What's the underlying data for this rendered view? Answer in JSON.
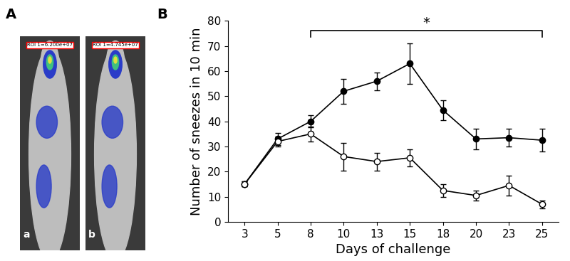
{
  "panel_labels": [
    "A",
    "B"
  ],
  "images": [
    {
      "label": "a",
      "roi": "ROI 1=6.200e+07"
    },
    {
      "label": "b",
      "roi": "ROI 1=4.745e+07"
    }
  ],
  "chart_data": {
    "type": "line",
    "x_label": "Days of challenge",
    "y_label": "Number of sneezes in 10 min",
    "categories": [
      "3",
      "5",
      "8",
      "10",
      "13",
      "15",
      "18",
      "20",
      "23",
      "25"
    ],
    "series": [
      {
        "color": "#000000",
        "marker": "filled_circle",
        "values": [
          15,
          33,
          40,
          52,
          56,
          63,
          44.5,
          33,
          33.5,
          32.5
        ],
        "errors": [
          1,
          2.5,
          2.5,
          5,
          3.5,
          8,
          4,
          4,
          3.5,
          4.5
        ]
      },
      {
        "color": "#000000",
        "marker": "open_circle",
        "values": [
          15,
          32,
          35,
          26,
          24,
          25.5,
          12.5,
          10.5,
          14.5,
          7
        ],
        "errors": [
          1,
          2,
          3,
          5.5,
          3.5,
          3.5,
          2.5,
          2,
          4,
          1.5
        ]
      }
    ],
    "annotations": [
      {
        "text": "*",
        "from": "8",
        "to": "25"
      }
    ],
    "ylim": [
      0,
      80
    ],
    "yticks": [
      0,
      10,
      20,
      30,
      40,
      50,
      60,
      70,
      80
    ]
  }
}
